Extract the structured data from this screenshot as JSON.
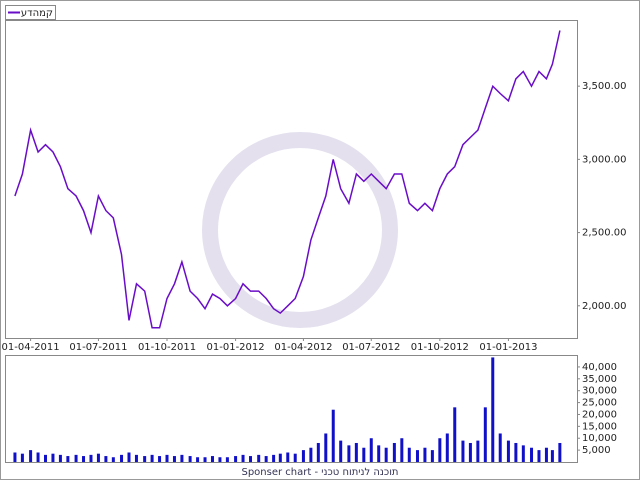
{
  "chart_data": [
    {
      "type": "line",
      "x": [
        "11-03-2011",
        "21-03-2011",
        "01-04-2011",
        "11-04-2011",
        "21-04-2011",
        "01-05-2011",
        "11-05-2011",
        "21-05-2011",
        "01-06-2011",
        "11-06-2011",
        "21-06-2011",
        "01-07-2011",
        "11-07-2011",
        "21-07-2011",
        "01-08-2011",
        "11-08-2011",
        "21-08-2011",
        "01-09-2011",
        "11-09-2011",
        "21-09-2011",
        "01-10-2011",
        "11-10-2011",
        "21-10-2011",
        "01-11-2011",
        "11-11-2011",
        "21-11-2011",
        "01-12-2011",
        "11-12-2011",
        "21-12-2011",
        "01-01-2012",
        "11-01-2012",
        "21-01-2012",
        "01-02-2012",
        "11-02-2012",
        "21-02-2012",
        "01-03-2012",
        "11-03-2012",
        "21-03-2012",
        "01-04-2012",
        "11-04-2012",
        "21-04-2012",
        "01-05-2012",
        "11-05-2012",
        "21-05-2012",
        "01-06-2012",
        "11-06-2012",
        "21-06-2012",
        "01-07-2012",
        "11-07-2012",
        "21-07-2012",
        "01-08-2012",
        "11-08-2012",
        "21-08-2012",
        "01-09-2012",
        "11-09-2012",
        "21-09-2012",
        "01-10-2012",
        "11-10-2012",
        "21-10-2012",
        "01-11-2012",
        "11-11-2012",
        "21-11-2012",
        "01-12-2012",
        "11-12-2012",
        "21-12-2012",
        "01-01-2013",
        "11-01-2013",
        "21-01-2013",
        "01-02-2013",
        "11-02-2013",
        "21-02-2013",
        "01-03-2013",
        "11-03-2013"
      ],
      "series": [
        {
          "name": "קמהדע",
          "color": "#6a0dc8",
          "values": [
            2750,
            2900,
            3200,
            3050,
            3100,
            3050,
            2950,
            2800,
            2750,
            2650,
            2500,
            2750,
            2650,
            2600,
            2350,
            1900,
            2150,
            2100,
            1850,
            1850,
            2050,
            2150,
            2300,
            2100,
            2050,
            1980,
            2080,
            2050,
            2000,
            2050,
            2150,
            2100,
            2100,
            2050,
            1980,
            1950,
            2000,
            2050,
            2200,
            2450,
            2600,
            2750,
            3000,
            2800,
            2700,
            2900,
            2850,
            2900,
            2850,
            2800,
            2900,
            2900,
            2700,
            2650,
            2700,
            2650,
            2800,
            2900,
            2950,
            3100,
            3150,
            3200,
            3350,
            3500,
            3450,
            3400,
            3550,
            3600,
            3500,
            3600,
            3550,
            3650,
            3880
          ]
        }
      ],
      "xlim": [
        "27-02-2011",
        "03-04-2013"
      ],
      "xticks": [
        "01-04-2011",
        "01-07-2011",
        "01-10-2011",
        "01-01-2012",
        "01-04-2012",
        "01-07-2012",
        "01-10-2012",
        "01-01-2013"
      ],
      "ylim": [
        1780,
        3945
      ],
      "yticks": [
        {
          "value": 2000,
          "label": "2,000.00"
        },
        {
          "value": 2500,
          "label": "2,500.00"
        },
        {
          "value": 3000,
          "label": "3,000.00"
        },
        {
          "value": 3500,
          "label": "3,500.00"
        }
      ]
    },
    {
      "type": "bar",
      "x": [
        "11-03-2011",
        "21-03-2011",
        "01-04-2011",
        "11-04-2011",
        "21-04-2011",
        "01-05-2011",
        "11-05-2011",
        "21-05-2011",
        "01-06-2011",
        "11-06-2011",
        "21-06-2011",
        "01-07-2011",
        "11-07-2011",
        "21-07-2011",
        "01-08-2011",
        "11-08-2011",
        "21-08-2011",
        "01-09-2011",
        "11-09-2011",
        "21-09-2011",
        "01-10-2011",
        "11-10-2011",
        "21-10-2011",
        "01-11-2011",
        "11-11-2011",
        "21-11-2011",
        "01-12-2011",
        "11-12-2011",
        "21-12-2011",
        "01-01-2012",
        "11-01-2012",
        "21-01-2012",
        "01-02-2012",
        "11-02-2012",
        "21-02-2012",
        "01-03-2012",
        "11-03-2012",
        "21-03-2012",
        "01-04-2012",
        "11-04-2012",
        "21-04-2012",
        "01-05-2012",
        "11-05-2012",
        "21-05-2012",
        "01-06-2012",
        "11-06-2012",
        "21-06-2012",
        "01-07-2012",
        "11-07-2012",
        "21-07-2012",
        "01-08-2012",
        "11-08-2012",
        "21-08-2012",
        "01-09-2012",
        "11-09-2012",
        "21-09-2012",
        "01-10-2012",
        "11-10-2012",
        "21-10-2012",
        "01-11-2012",
        "11-11-2012",
        "21-11-2012",
        "01-12-2012",
        "11-12-2012",
        "21-12-2012",
        "01-01-2013",
        "11-01-2013",
        "21-01-2013",
        "01-02-2013",
        "11-02-2013",
        "21-02-2013",
        "01-03-2013",
        "11-03-2013"
      ],
      "color": "#1010c8",
      "values": [
        4000,
        3500,
        5000,
        4000,
        3000,
        3500,
        3000,
        2500,
        3000,
        2500,
        3000,
        3500,
        2500,
        2000,
        3000,
        4000,
        3000,
        2500,
        3000,
        2500,
        3000,
        2500,
        3000,
        2500,
        2000,
        2000,
        2500,
        2000,
        2000,
        2500,
        3000,
        2500,
        3000,
        2500,
        3000,
        3500,
        4000,
        3500,
        5000,
        6000,
        8000,
        12000,
        22000,
        9000,
        7000,
        8000,
        6000,
        10000,
        7000,
        6000,
        8000,
        10000,
        6000,
        5000,
        6000,
        5000,
        10000,
        12000,
        23000,
        9000,
        8000,
        9000,
        23000,
        44000,
        12000,
        9000,
        8000,
        7000,
        6000,
        5000,
        6000,
        5000,
        8000
      ],
      "xlim": [
        "27-02-2011",
        "03-04-2013"
      ],
      "ylim": [
        0,
        44600
      ],
      "yticks": [
        {
          "value": 5000,
          "label": "5,000"
        },
        {
          "value": 10000,
          "label": "10,000"
        },
        {
          "value": 15000,
          "label": "15,000"
        },
        {
          "value": 20000,
          "label": "20,000"
        },
        {
          "value": 25000,
          "label": "25,000"
        },
        {
          "value": 30000,
          "label": "30,000"
        },
        {
          "value": 35000,
          "label": "35,000"
        },
        {
          "value": 40000,
          "label": "40,000"
        }
      ]
    }
  ],
  "footer": "Sponser chart - תוכנה לניתוח טכני"
}
